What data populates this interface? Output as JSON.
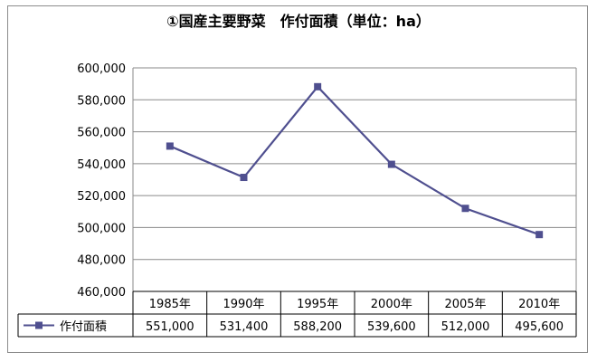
{
  "chart_data": {
    "type": "line",
    "title": "①国産主要野菜　作付面積（単位：ha）",
    "categories": [
      "1985年",
      "1990年",
      "1995年",
      "2000年",
      "2005年",
      "2010年"
    ],
    "series": [
      {
        "name": "作付面積",
        "values": [
          551000,
          531400,
          588200,
          539600,
          512000,
          495600
        ],
        "labels": [
          "551,000",
          "531,400",
          "588,200",
          "539,600",
          "512,000",
          "495,600"
        ],
        "color": "#4f4f8f",
        "marker": "square"
      }
    ],
    "yticks": [
      "460,000",
      "480,000",
      "500,000",
      "520,000",
      "540,000",
      "560,000",
      "580,000",
      "600,000"
    ],
    "ylim": [
      460000,
      600000
    ],
    "grid": true,
    "legend": "data-table"
  }
}
